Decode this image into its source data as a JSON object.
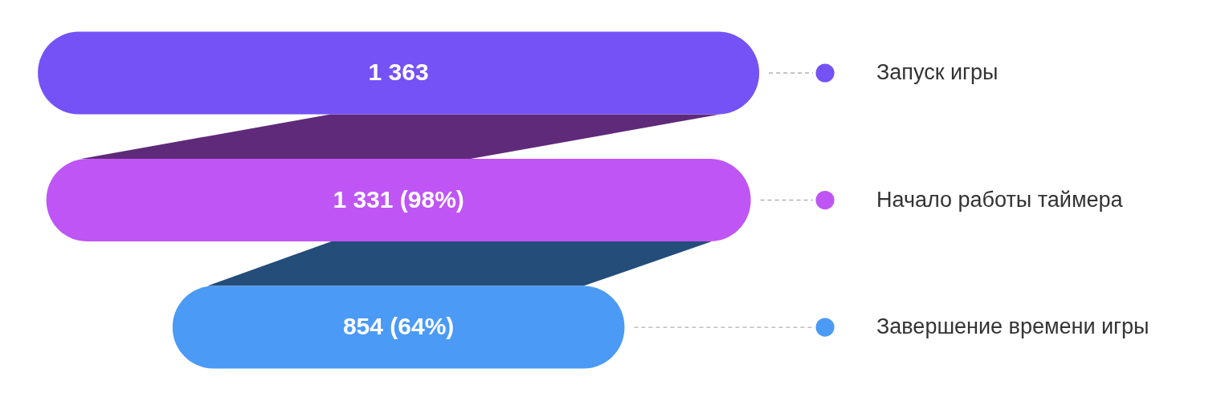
{
  "chart_data": {
    "type": "other",
    "categories": [
      "Запуск игры",
      "Начало работы таймера",
      "Завершение времени игры"
    ],
    "values": [
      1363,
      1331,
      854
    ],
    "value_labels": [
      "1 363",
      "1 331 (98%)",
      "854 (64%)"
    ],
    "colors": [
      "#7452f5",
      "#bf55f5",
      "#4b9af5"
    ]
  }
}
